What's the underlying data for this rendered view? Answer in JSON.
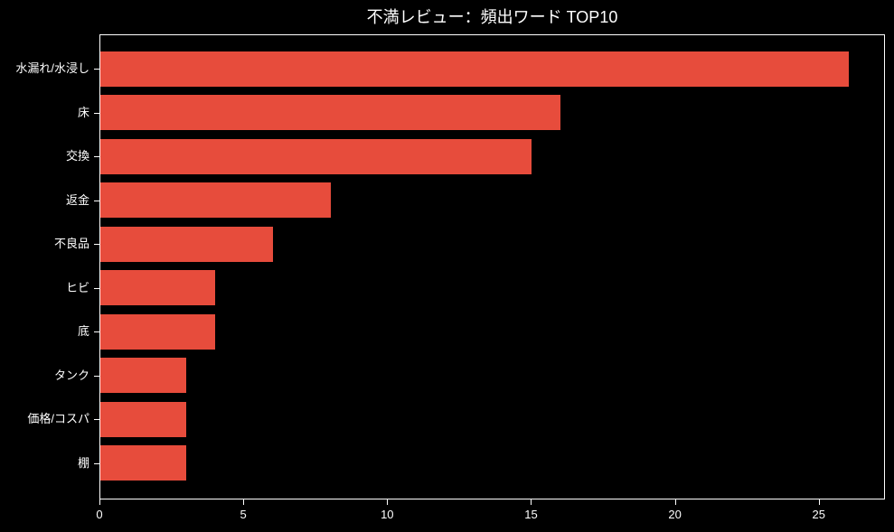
{
  "chart_data": {
    "type": "bar",
    "orientation": "horizontal",
    "title": "不満レビュー：頻出ワード TOP10",
    "categories": [
      "水漏れ/水浸し",
      "床",
      "交換",
      "返金",
      "不良品",
      "ヒビ",
      "底",
      "タンク",
      "価格/コスパ",
      "棚"
    ],
    "values": [
      26,
      16,
      15,
      8,
      6,
      4,
      4,
      3,
      3,
      3
    ],
    "xlabel": "",
    "ylabel": "",
    "xlim": [
      0,
      27.3
    ],
    "xticks": [
      0,
      5,
      10,
      15,
      20,
      25
    ],
    "grid": false,
    "legend": false,
    "bar_color": "#e74c3c",
    "background_color": "#000000",
    "text_color": "#ffffff",
    "spine_color": "#ffffff"
  }
}
